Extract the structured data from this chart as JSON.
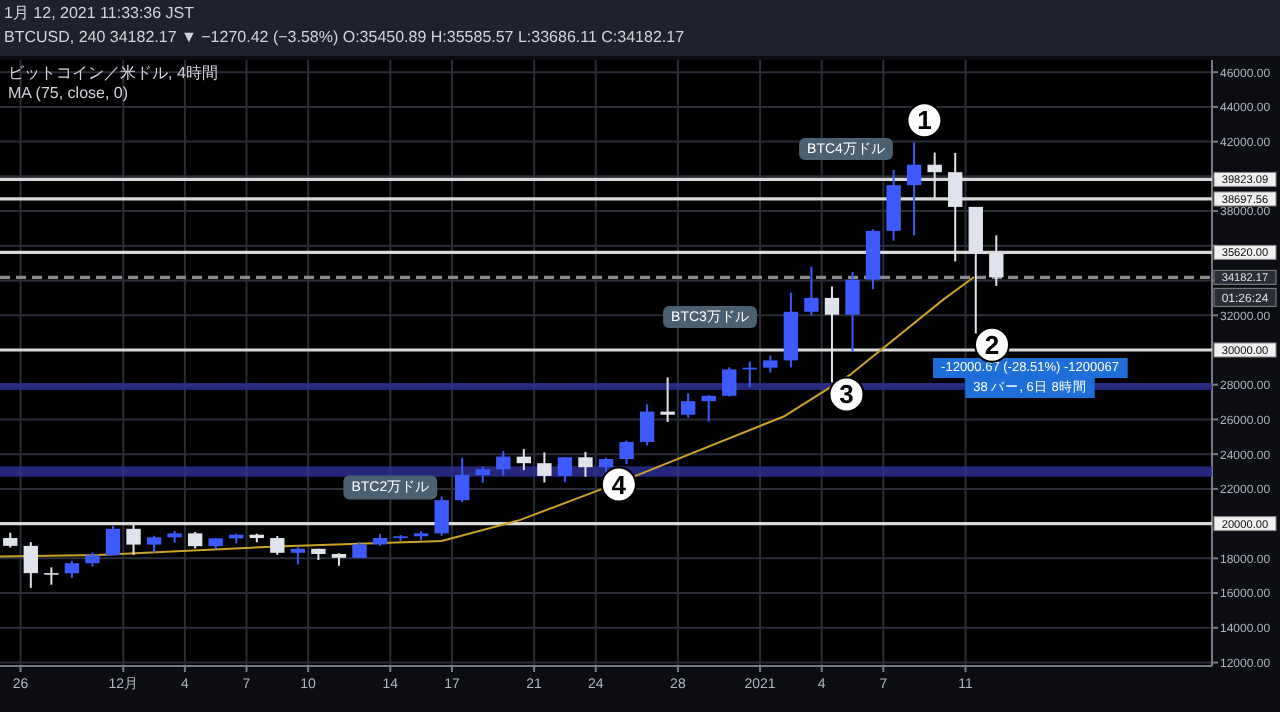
{
  "chart_data": {
    "type": "candlestick",
    "title": "ビットコイン／米ドル, 4時間",
    "xlim": [
      "2020-11-25T00:00",
      "2021-01-23T00:00"
    ],
    "xticks": [
      {
        "value": "2020-11-26",
        "label": "26"
      },
      {
        "value": "2020-12-01",
        "label": "12月"
      },
      {
        "value": "2020-12-04",
        "label": "4"
      },
      {
        "value": "2020-12-07",
        "label": "7"
      },
      {
        "value": "2020-12-10",
        "label": "10"
      },
      {
        "value": "2020-12-14",
        "label": "14"
      },
      {
        "value": "2020-12-17",
        "label": "17"
      },
      {
        "value": "2020-12-21",
        "label": "21"
      },
      {
        "value": "2020-12-24",
        "label": "24"
      },
      {
        "value": "2020-12-28",
        "label": "28"
      },
      {
        "value": "2021-01-01",
        "label": "2021"
      },
      {
        "value": "2021-01-04",
        "label": "4"
      },
      {
        "value": "2021-01-07",
        "label": "7"
      },
      {
        "value": "2021-01-11",
        "label": "11"
      }
    ],
    "ylim": [
      11800,
      46700
    ],
    "yticks": [
      {
        "value": 12000,
        "label": "12000.00"
      },
      {
        "value": 14000,
        "label": "14000.00"
      },
      {
        "value": 16000,
        "label": "16000.00"
      },
      {
        "value": 18000,
        "label": "18000.00"
      },
      {
        "value": 22000,
        "label": "22000.00"
      },
      {
        "value": 24000,
        "label": "24000.00"
      },
      {
        "value": 26000,
        "label": "26000.00"
      },
      {
        "value": 28000,
        "label": "28000.00"
      },
      {
        "value": 32000,
        "label": "32000.00"
      },
      {
        "value": 34000,
        "label": null
      },
      {
        "value": 36000,
        "label": null
      },
      {
        "value": 38000,
        "label": "38000.00"
      },
      {
        "value": 40000,
        "label": null
      },
      {
        "value": 42000,
        "label": "42000.00"
      },
      {
        "value": 44000,
        "label": "44000.00"
      },
      {
        "value": 46000,
        "label": "46000.00"
      }
    ],
    "grid": true,
    "series": [
      {
        "type": "line",
        "color": "#c9a227",
        "x": [
          "2020-11-25T00:00",
          "2020-11-29T19:00",
          "2020-12-08T19:00",
          "2020-12-16T12:00",
          "2020-12-20T07:00",
          "2020-12-25T00:00",
          "2021-01-02T05:00",
          "2021-01-05T10:00",
          "2021-01-09T22:00",
          "2021-01-11T10:00"
        ],
        "values": [
          18100,
          18200,
          18700,
          19000,
          20200,
          22300,
          26200,
          28600,
          32900,
          34200
        ]
      },
      {
        "x": [
          "2020-11-25T12:00",
          "2020-11-26T12:00",
          "2020-11-27T12:00",
          "2020-11-28T12:00",
          "2020-11-29T12:00",
          "2020-11-30T12:00",
          "2020-12-01T12:00",
          "2020-12-02T12:00",
          "2020-12-03T12:00",
          "2020-12-04T12:00",
          "2020-12-05T12:00",
          "2020-12-06T12:00",
          "2020-12-07T12:00",
          "2020-12-08T12:00",
          "2020-12-09T12:00",
          "2020-12-10T12:00",
          "2020-12-11T12:00",
          "2020-12-12T12:00",
          "2020-12-13T12:00",
          "2020-12-14T12:00",
          "2020-12-15T12:00",
          "2020-12-16T12:00",
          "2020-12-17T12:00",
          "2020-12-18T12:00",
          "2020-12-19T12:00",
          "2020-12-20T12:00",
          "2020-12-21T12:00",
          "2020-12-22T12:00",
          "2020-12-23T12:00",
          "2020-12-24T12:00",
          "2020-12-25T12:00",
          "2020-12-26T12:00",
          "2020-12-27T12:00",
          "2020-12-28T12:00",
          "2020-12-29T12:00",
          "2020-12-30T12:00",
          "2020-12-31T12:00",
          "2021-01-01T12:00",
          "2021-01-02T12:00",
          "2021-01-03T12:00",
          "2021-01-04T12:00",
          "2021-01-05T12:00",
          "2021-01-06T12:00",
          "2021-01-07T12:00",
          "2021-01-08T12:00",
          "2021-01-09T12:00",
          "2021-01-10T12:00",
          "2021-01-11T12:00",
          "2021-01-12T12:00"
        ],
        "ohlc": [
          [
            19170,
            19480,
            18620,
            18720
          ],
          [
            18720,
            18930,
            16300,
            17150
          ],
          [
            17150,
            17480,
            16480,
            17140
          ],
          [
            17140,
            17850,
            16880,
            17720
          ],
          [
            17720,
            18330,
            17530,
            18180
          ],
          [
            18180,
            19860,
            18180,
            19700
          ],
          [
            19700,
            19920,
            18200,
            18790
          ],
          [
            18790,
            19300,
            18330,
            19210
          ],
          [
            19210,
            19580,
            18900,
            19440
          ],
          [
            19440,
            19520,
            18570,
            18700
          ],
          [
            18700,
            19170,
            18530,
            19150
          ],
          [
            19150,
            19420,
            18860,
            19360
          ],
          [
            19360,
            19420,
            18920,
            19170
          ],
          [
            19170,
            19290,
            18200,
            18320
          ],
          [
            18320,
            18640,
            17650,
            18550
          ],
          [
            18550,
            18560,
            17910,
            18250
          ],
          [
            18250,
            18290,
            17570,
            18030
          ],
          [
            18030,
            18950,
            18020,
            18800
          ],
          [
            18800,
            19400,
            18720,
            19170
          ],
          [
            19170,
            19340,
            19000,
            19270
          ],
          [
            19270,
            19560,
            19050,
            19440
          ],
          [
            19440,
            21560,
            19300,
            21350
          ],
          [
            21350,
            23800,
            21240,
            22800
          ],
          [
            22800,
            23290,
            22350,
            23130
          ],
          [
            23130,
            24170,
            22770,
            23860
          ],
          [
            23860,
            24290,
            23080,
            23480
          ],
          [
            23480,
            24100,
            22370,
            22750
          ],
          [
            22750,
            23830,
            22380,
            23820
          ],
          [
            23820,
            24130,
            22700,
            23250
          ],
          [
            23250,
            23800,
            22720,
            23720
          ],
          [
            23720,
            24780,
            23420,
            24700
          ],
          [
            24700,
            26870,
            24500,
            26450
          ],
          [
            26450,
            28420,
            25850,
            26270
          ],
          [
            26270,
            27500,
            26100,
            27050
          ],
          [
            27050,
            27400,
            25880,
            27360
          ],
          [
            27360,
            29000,
            27320,
            28880
          ],
          [
            28880,
            29330,
            27850,
            28980
          ],
          [
            28980,
            29680,
            28700,
            29400
          ],
          [
            29400,
            33300,
            29000,
            32200
          ],
          [
            32200,
            34800,
            31990,
            33000
          ],
          [
            33000,
            33660,
            28130,
            32030
          ],
          [
            32030,
            34500,
            29900,
            34050
          ],
          [
            34050,
            36950,
            33500,
            36860
          ],
          [
            36860,
            40370,
            36300,
            39490
          ],
          [
            39490,
            41950,
            36600,
            40670
          ],
          [
            40670,
            41370,
            38750,
            40240
          ],
          [
            40240,
            41350,
            35100,
            38240
          ],
          [
            38240,
            38240,
            30950,
            35550
          ],
          [
            35550,
            36600,
            33690,
            34182.17
          ]
        ],
        "colors": [
          "#e0e3eb",
          "#e0e3eb",
          "#e0e3eb",
          "#3d5afe",
          "#3d5afe",
          "#3d5afe",
          "#e0e3eb",
          "#3d5afe",
          "#3d5afe",
          "#e0e3eb",
          "#3d5afe",
          "#3d5afe",
          "#e0e3eb",
          "#e0e3eb",
          "#3d5afe",
          "#e0e3eb",
          "#e0e3eb",
          "#3d5afe",
          "#3d5afe",
          "#3d5afe",
          "#3d5afe",
          "#3d5afe",
          "#3d5afe",
          "#3d5afe",
          "#3d5afe",
          "#e0e3eb",
          "#e0e3eb",
          "#3d5afe",
          "#e0e3eb",
          "#3d5afe",
          "#3d5afe",
          "#3d5afe",
          "#e0e3eb",
          "#3d5afe",
          "#3d5afe",
          "#3d5afe",
          "#3d5afe",
          "#3d5afe",
          "#3d5afe",
          "#3d5afe",
          "#e0e3eb",
          "#3d5afe",
          "#3d5afe",
          "#3d5afe",
          "#3d5afe",
          "#e0e3eb",
          "#e0e3eb",
          "#e0e3eb",
          "#e0e3eb"
        ]
      }
    ],
    "ref_lines": [
      {
        "axis": "y",
        "value": 39823.09,
        "label": "39823.09",
        "color": "#d9d9d9"
      },
      {
        "axis": "y",
        "value": 38697.56,
        "label": "38697.56",
        "color": "#d9d9d9"
      },
      {
        "axis": "y",
        "value": 35620,
        "label": "35620.00",
        "color": "#d9d9d9"
      },
      {
        "axis": "y",
        "value": 34182.17,
        "label": "34182.17",
        "color": "#8a8a8a",
        "line_style": "dashed"
      },
      {
        "axis": "y",
        "value": 30000,
        "label": "30000.00",
        "color": "#d9d9d9"
      },
      {
        "axis": "y",
        "value": 20000,
        "label": "20000.00",
        "color": "#d9d9d9"
      }
    ],
    "bands": [
      {
        "axis": "y",
        "from": 27700,
        "to": 28100,
        "color": "#2b2f8f"
      },
      {
        "axis": "y",
        "from": 22700,
        "to": 23300,
        "color": "#2b2f8f"
      }
    ],
    "annotations": [
      "1月 12, 2021 11:33:36 JST",
      "BTCUSD, 240 34182.17 ▼ −1270.42 (−3.58%) O:35450.89 H:35585.57 L:33686.11 C:34182.17",
      "MA (75, close, 0)",
      "01:26:24",
      "BTC3万ドル",
      "BTC4万ドル",
      "-12000.67 (-28.51%) -1200067",
      "38 バー, 6日 8時間",
      {
        "text": "1",
        "x": "2021-01-09T00:00",
        "y": 43230
      },
      {
        "text": "2",
        "x": "2021-01-12T07:00",
        "y": 30300
      },
      {
        "text": "3",
        "x": "2021-01-05T05:00",
        "y": 27440
      },
      {
        "text": "4",
        "x": "2020-12-25T03:00",
        "y": 22250
      },
      {
        "text": "BTC2万ドル",
        "x": "2020-12-14T00:00",
        "y": 22140
      }
    ]
  }
}
